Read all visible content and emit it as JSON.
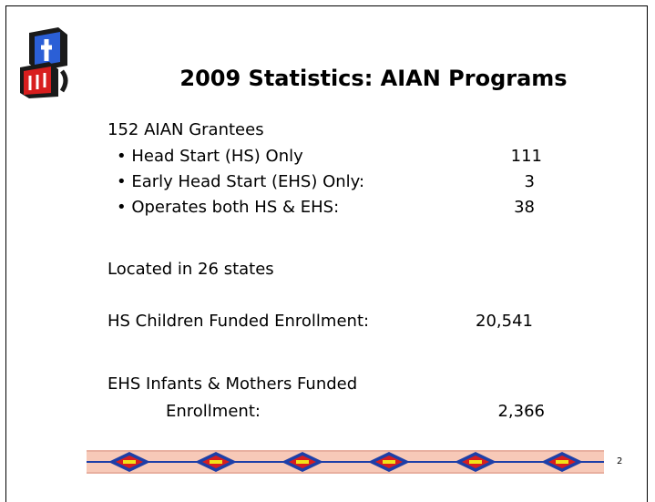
{
  "title": "2009 Statistics: AIAN Programs",
  "grantees": {
    "heading": "152 AIAN Grantees",
    "items": [
      {
        "label": "• Head Start (HS) Only",
        "value": "111"
      },
      {
        "label": "• Early Head Start (EHS) Only:",
        "value": "3"
      },
      {
        "label": "• Operates both HS & EHS:",
        "value": "38"
      }
    ]
  },
  "states": "Located in 26 states",
  "hs_enrollment": {
    "label": "HS Children Funded Enrollment:",
    "value": "20,541"
  },
  "ehs_enrollment": {
    "label_line1": "EHS Infants & Mothers Funded",
    "label_line2": "Enrollment:",
    "value": "2,366"
  },
  "page_number": "2"
}
